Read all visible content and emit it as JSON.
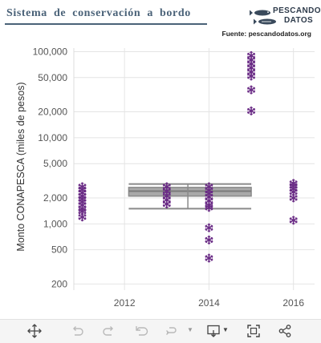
{
  "header": {
    "title": "Sistema de conservación a bordo",
    "logo_line1": "PESCANDO",
    "logo_line2": "DATOS",
    "source": "Fuente: pescandodatos.org"
  },
  "chart_data": {
    "type": "scatter",
    "ylabel": "Monto CONAPESCA (miles de pesos)",
    "xlabel": "",
    "y_scale": "log",
    "ylim": [
      170,
      110000
    ],
    "xlim": [
      2010.8,
      2016.5
    ],
    "x_ticks": [
      "2012",
      "2014",
      "2016"
    ],
    "y_ticks": [
      "100,000",
      "50,000",
      "20,000",
      "10,000",
      "5,000",
      "2,000",
      "1,000",
      "500",
      "200"
    ],
    "marker": "snowflake",
    "marker_color": "#6b2d86",
    "box": {
      "x_range": [
        2012.1,
        2015.0
      ],
      "whisker_low": 1500,
      "q1": 2100,
      "median": 2400,
      "q3": 2650,
      "whisker_high": 2900,
      "mid_line_x": 2013.5,
      "color": "#8a8a8a"
    },
    "points": [
      {
        "x": 2011.0,
        "y": 2700
      },
      {
        "x": 2011.0,
        "y": 2500
      },
      {
        "x": 2011.0,
        "y": 2300
      },
      {
        "x": 2011.0,
        "y": 2100
      },
      {
        "x": 2011.0,
        "y": 1950
      },
      {
        "x": 2011.0,
        "y": 1800
      },
      {
        "x": 2011.0,
        "y": 1650
      },
      {
        "x": 2011.0,
        "y": 1500
      },
      {
        "x": 2011.0,
        "y": 1400
      },
      {
        "x": 2011.0,
        "y": 1200
      },
      {
        "x": 2013.0,
        "y": 2700
      },
      {
        "x": 2013.0,
        "y": 2400
      },
      {
        "x": 2013.0,
        "y": 2100
      },
      {
        "x": 2013.0,
        "y": 1900
      },
      {
        "x": 2013.0,
        "y": 1700
      },
      {
        "x": 2014.0,
        "y": 2700
      },
      {
        "x": 2014.0,
        "y": 2450
      },
      {
        "x": 2014.0,
        "y": 2250
      },
      {
        "x": 2014.0,
        "y": 2050
      },
      {
        "x": 2014.0,
        "y": 1850
      },
      {
        "x": 2014.0,
        "y": 1650
      },
      {
        "x": 2014.0,
        "y": 1550
      },
      {
        "x": 2014.0,
        "y": 900
      },
      {
        "x": 2014.0,
        "y": 650
      },
      {
        "x": 2014.0,
        "y": 400
      },
      {
        "x": 2015.0,
        "y": 90000
      },
      {
        "x": 2015.0,
        "y": 80000
      },
      {
        "x": 2015.0,
        "y": 72000
      },
      {
        "x": 2015.0,
        "y": 65000
      },
      {
        "x": 2015.0,
        "y": 58000
      },
      {
        "x": 2015.0,
        "y": 52000
      },
      {
        "x": 2015.0,
        "y": 36000
      },
      {
        "x": 2015.0,
        "y": 20500
      },
      {
        "x": 2016.0,
        "y": 2950
      },
      {
        "x": 2016.0,
        "y": 2750
      },
      {
        "x": 2016.0,
        "y": 2550
      },
      {
        "x": 2016.0,
        "y": 2350
      },
      {
        "x": 2016.0,
        "y": 2000
      },
      {
        "x": 2016.0,
        "y": 1100
      }
    ]
  },
  "toolbar": {
    "pan_icon": "move-arrows-icon",
    "undo_icon": "undo-icon",
    "redo_icon": "redo-icon",
    "revert_icon": "revert-icon",
    "refresh_icon": "refresh-icon",
    "download_icon": "download-icon",
    "fullscreen_icon": "fullscreen-icon",
    "share_icon": "share-icon"
  }
}
